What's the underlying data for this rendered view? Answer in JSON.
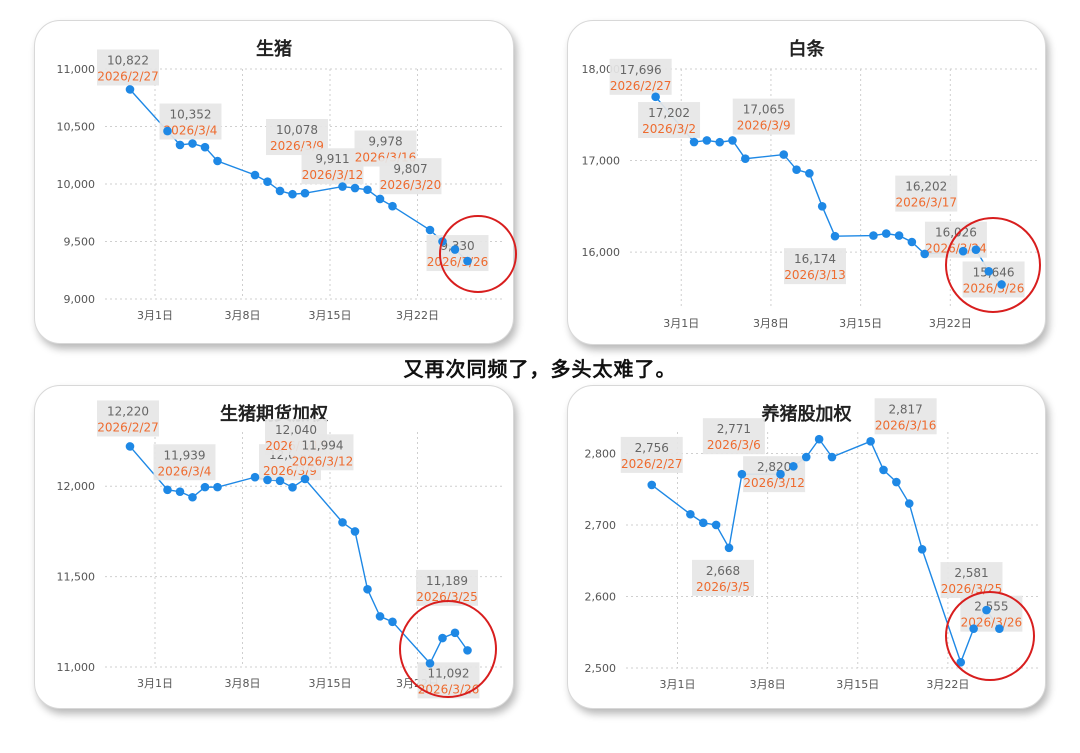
{
  "caption": "又再次同频了，多头太难了。",
  "chart_data": [
    {
      "type": "line",
      "title": "生猪",
      "xlabel": "",
      "ylabel": "",
      "ylim": [
        9000,
        11000
      ],
      "yticks": [
        9000,
        9500,
        10000,
        10500,
        11000
      ],
      "ytick_labels": [
        "9,000",
        "9,500",
        "10,000",
        "10,500",
        "11,000"
      ],
      "xticks": [
        "2026-03-01",
        "2026-03-08",
        "2026-03-15",
        "2026-03-22"
      ],
      "xtick_labels": [
        "3月1日",
        "3月8日",
        "3月15日",
        "3月22日"
      ],
      "grid": true,
      "x": [
        "2026-02-27",
        "2026-03-02",
        "2026-03-03",
        "2026-03-04",
        "2026-03-05",
        "2026-03-06",
        "2026-03-09",
        "2026-03-10",
        "2026-03-11",
        "2026-03-12",
        "2026-03-13",
        "2026-03-16",
        "2026-03-17",
        "2026-03-18",
        "2026-03-19",
        "2026-03-20",
        "2026-03-23",
        "2026-03-24",
        "2026-03-25",
        "2026-03-26"
      ],
      "series": [
        {
          "values": [
            10822,
            10460,
            10340,
            10352,
            10320,
            10200,
            10078,
            10020,
            9940,
            9911,
            9920,
            9978,
            9965,
            9950,
            9870,
            9807,
            9600,
            9500,
            9430,
            9330
          ]
        }
      ],
      "annotations": [
        {
          "x": "2026-02-27",
          "value": "10,822",
          "date": "2026/2/27"
        },
        {
          "x": "2026-03-04",
          "value": "10,352",
          "date": "2026/3/4"
        },
        {
          "x": "2026-03-09",
          "value": "10,078",
          "date": "2026/3/9"
        },
        {
          "x": "2026-03-12",
          "value": "9,911",
          "date": "2026/3/12"
        },
        {
          "x": "2026-03-16",
          "value": "9,978",
          "date": "2026/3/16"
        },
        {
          "x": "2026-03-20",
          "value": "9,807",
          "date": "2026/3/20"
        },
        {
          "x": "2026-03-26",
          "value": "9,330",
          "date": "2026/3/26"
        }
      ]
    },
    {
      "type": "line",
      "title": "白条",
      "xlabel": "",
      "ylabel": "",
      "ylim": [
        15400,
        18000
      ],
      "yticks": [
        16000,
        17000,
        18000
      ],
      "ytick_labels": [
        "16,000",
        "17,000",
        "18,000"
      ],
      "xticks": [
        "2026-03-01",
        "2026-03-08",
        "2026-03-15",
        "2026-03-22"
      ],
      "xtick_labels": [
        "3月1日",
        "3月8日",
        "3月15日",
        "3月22日"
      ],
      "grid": true,
      "x": [
        "2026-02-27",
        "2026-03-02",
        "2026-03-03",
        "2026-03-04",
        "2026-03-05",
        "2026-03-06",
        "2026-03-09",
        "2026-03-10",
        "2026-03-11",
        "2026-03-12",
        "2026-03-13",
        "2026-03-16",
        "2026-03-17",
        "2026-03-18",
        "2026-03-19",
        "2026-03-20",
        "2026-03-23",
        "2026-03-24",
        "2026-03-25",
        "2026-03-26"
      ],
      "series": [
        {
          "values": [
            17696,
            17202,
            17220,
            17200,
            17220,
            17020,
            17065,
            16900,
            16860,
            16500,
            16174,
            16180,
            16202,
            16180,
            16110,
            15980,
            16010,
            16026,
            15790,
            15646
          ]
        }
      ],
      "annotations": [
        {
          "x": "2026-02-27",
          "value": "17,696",
          "date": "2026/2/27"
        },
        {
          "x": "2026-03-02",
          "value": "17,202",
          "date": "2026/3/2"
        },
        {
          "x": "2026-03-09",
          "value": "17,065",
          "date": "2026/3/9"
        },
        {
          "x": "2026-03-13",
          "value": "16,174",
          "date": "2026/3/13"
        },
        {
          "x": "2026-03-17",
          "value": "16,202",
          "date": "2026/3/17"
        },
        {
          "x": "2026-03-24",
          "value": "16,026",
          "date": "2026/3/24"
        },
        {
          "x": "2026-03-26",
          "value": "15,646",
          "date": "2026/3/26"
        }
      ]
    },
    {
      "type": "line",
      "title": "生猪期货加权",
      "xlabel": "",
      "ylabel": "",
      "ylim": [
        11000,
        12300
      ],
      "yticks": [
        11000,
        11500,
        12000
      ],
      "ytick_labels": [
        "11,000",
        "11,500",
        "12,000"
      ],
      "xticks": [
        "2026-03-01",
        "2026-03-08",
        "2026-03-15",
        "2026-03-22"
      ],
      "xtick_labels": [
        "3月1日",
        "3月8日",
        "3月15日",
        "3月22日"
      ],
      "grid": true,
      "x": [
        "2026-02-27",
        "2026-03-02",
        "2026-03-03",
        "2026-03-04",
        "2026-03-05",
        "2026-03-06",
        "2026-03-09",
        "2026-03-10",
        "2026-03-11",
        "2026-03-12",
        "2026-03-13",
        "2026-03-16",
        "2026-03-17",
        "2026-03-18",
        "2026-03-19",
        "2026-03-20",
        "2026-03-23",
        "2026-03-24",
        "2026-03-25",
        "2026-03-26"
      ],
      "series": [
        {
          "values": [
            12220,
            11980,
            11970,
            11939,
            11995,
            11995,
            12050,
            12035,
            12030,
            11994,
            12040,
            11800,
            11750,
            11430,
            11280,
            11250,
            11020,
            11160,
            11189,
            11092
          ]
        }
      ],
      "annotations": [
        {
          "x": "2026-02-27",
          "value": "12,220",
          "date": "2026/2/27"
        },
        {
          "x": "2026-03-04",
          "value": "11,939",
          "date": "2026/3/4"
        },
        {
          "x": "2026-03-09",
          "value": "12,050",
          "date": "2026/3/9"
        },
        {
          "x": "2026-03-13",
          "value": "12,040",
          "date": "2026/3/13"
        },
        {
          "x": "2026-03-12",
          "value": "11,994",
          "date": "2026/3/12"
        },
        {
          "x": "2026-03-25",
          "value": "11,189",
          "date": "2026/3/25"
        },
        {
          "x": "2026-03-26",
          "value": "11,092",
          "date": "2026/3/26"
        }
      ]
    },
    {
      "type": "line",
      "title": "养猪股加权",
      "xlabel": "",
      "ylabel": "",
      "ylim": [
        2500,
        2830
      ],
      "yticks": [
        2500,
        2600,
        2700,
        2800
      ],
      "ytick_labels": [
        "2,500",
        "2,600",
        "2,700",
        "2,800"
      ],
      "xticks": [
        "2026-03-01",
        "2026-03-08",
        "2026-03-15",
        "2026-03-22"
      ],
      "xtick_labels": [
        "3月1日",
        "3月8日",
        "3月15日",
        "3月22日"
      ],
      "grid": true,
      "x": [
        "2026-02-27",
        "2026-03-02",
        "2026-03-03",
        "2026-03-04",
        "2026-03-05",
        "2026-03-06",
        "2026-03-09",
        "2026-03-10",
        "2026-03-11",
        "2026-03-12",
        "2026-03-13",
        "2026-03-16",
        "2026-03-17",
        "2026-03-18",
        "2026-03-19",
        "2026-03-20",
        "2026-03-23",
        "2026-03-24",
        "2026-03-25",
        "2026-03-26"
      ],
      "series": [
        {
          "values": [
            2756,
            2715,
            2703,
            2700,
            2668,
            2771,
            2771,
            2782,
            2795,
            2820,
            2795,
            2817,
            2777,
            2760,
            2730,
            2666,
            2508,
            2555,
            2581,
            2555
          ]
        }
      ],
      "annotations": [
        {
          "x": "2026-02-27",
          "value": "2,756",
          "date": "2026/2/27"
        },
        {
          "x": "2026-03-05",
          "value": "2,668",
          "date": "2026/3/5"
        },
        {
          "x": "2026-03-06",
          "value": "2,771",
          "date": "2026/3/6"
        },
        {
          "x": "2026-03-12",
          "value": "2,820",
          "date": "2026/3/12"
        },
        {
          "x": "2026-03-16",
          "value": "2,817",
          "date": "2026/3/16"
        },
        {
          "x": "2026-03-25",
          "value": "2,581",
          "date": "2026/3/25"
        },
        {
          "x": "2026-03-26",
          "value": "2,555",
          "date": "2026/3/26"
        }
      ]
    }
  ],
  "colors": {
    "line": "#1e88e5",
    "point": "#1e88e5",
    "label_bg": "#e6e6e6",
    "label_value": "#666666",
    "label_date": "#ee6b2f",
    "highlight_circle": "#d81e1e",
    "grid": "#cfcfcf",
    "axis_text": "#555555"
  }
}
